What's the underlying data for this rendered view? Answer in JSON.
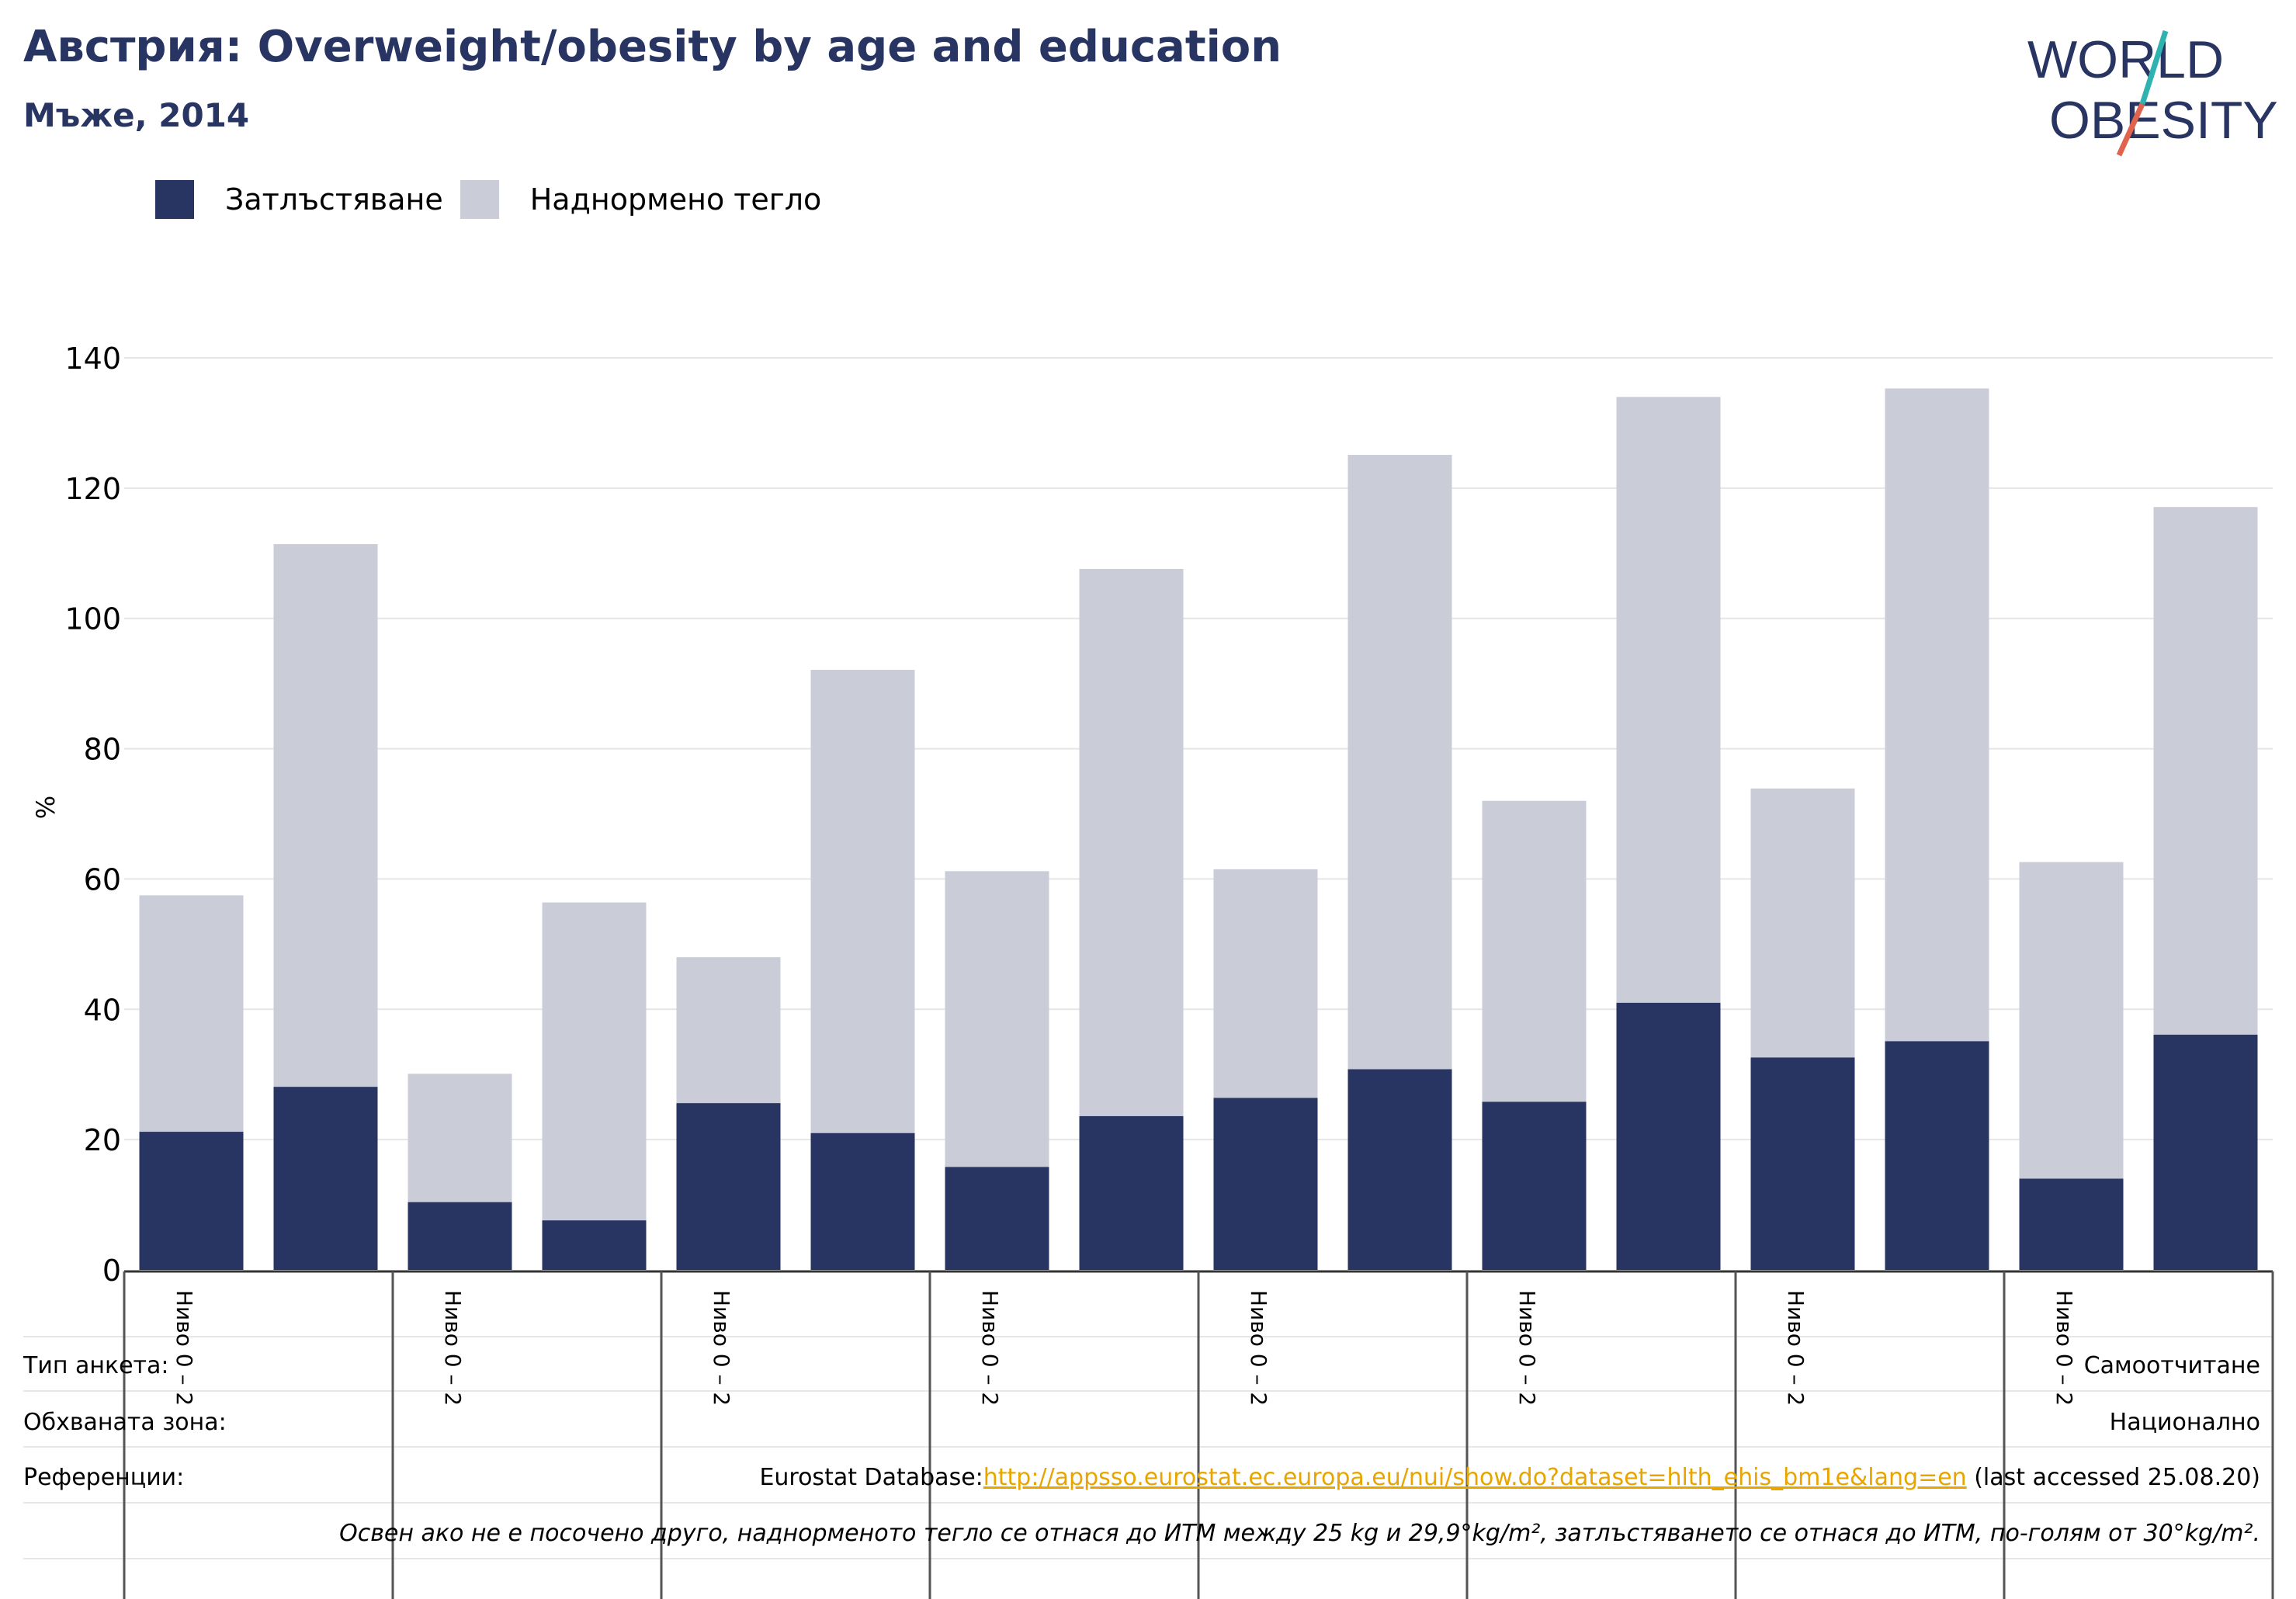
{
  "title": "Австрия: Overweight/obesity by age and education",
  "subtitle": "Мъже, 2014",
  "logo": {
    "line1": "WORLD",
    "line2": "OBESITY"
  },
  "colors": {
    "obesity": "#283462",
    "overweight": "#cacdd8",
    "title": "#283462",
    "grid": "#e6e6e6",
    "link": "#e8a500"
  },
  "legend": [
    {
      "label": "Затлъстяване",
      "color": "#283462"
    },
    {
      "label": "Наднормено тегло",
      "color": "#cacdd8"
    }
  ],
  "chart_data": {
    "type": "bar",
    "stacked": true,
    "ylabel": "%",
    "ylim": [
      0,
      140
    ],
    "yticks": [
      0,
      20,
      40,
      60,
      80,
      100,
      120,
      140
    ],
    "grid": true,
    "legend_position": "top-left",
    "group_label": "Ниво 0 – 2",
    "group_count": 8,
    "series": [
      {
        "name": "Затлъстяване",
        "values": [
          21.2,
          28.1,
          10.4,
          7.6,
          25.6,
          21.0,
          15.8,
          23.6,
          26.4,
          30.8,
          25.8,
          41.0,
          32.6,
          35.1,
          14.0,
          36.1
        ]
      },
      {
        "name": "Наднормено тегло",
        "values": [
          36.3,
          83.3,
          19.7,
          48.8,
          22.4,
          71.1,
          45.4,
          84.0,
          35.1,
          94.3,
          46.2,
          93.0,
          41.3,
          100.2,
          48.6,
          81.0
        ]
      }
    ]
  },
  "info": {
    "survey_label": "Тип анкета:",
    "survey_value": "Самоотчитане",
    "area_label": "Обхваната зона:",
    "area_value": "Национално",
    "ref_label": "Референции:",
    "ref_prefix": "Eurostat Database:",
    "ref_link": "http://appsso.eurostat.ec.europa.eu/nui/show.do?dataset=hlth_ehis_bm1e&lang=en",
    "ref_suffix": " (last accessed 25.08.20)",
    "note": "Освен ако не е посочено друго, наднорменото тегло се отнася до ИТМ между 25 kg и 29,9°kg/m², затлъстяването се отнася до ИТМ, по-голям от 30°kg/m²."
  }
}
